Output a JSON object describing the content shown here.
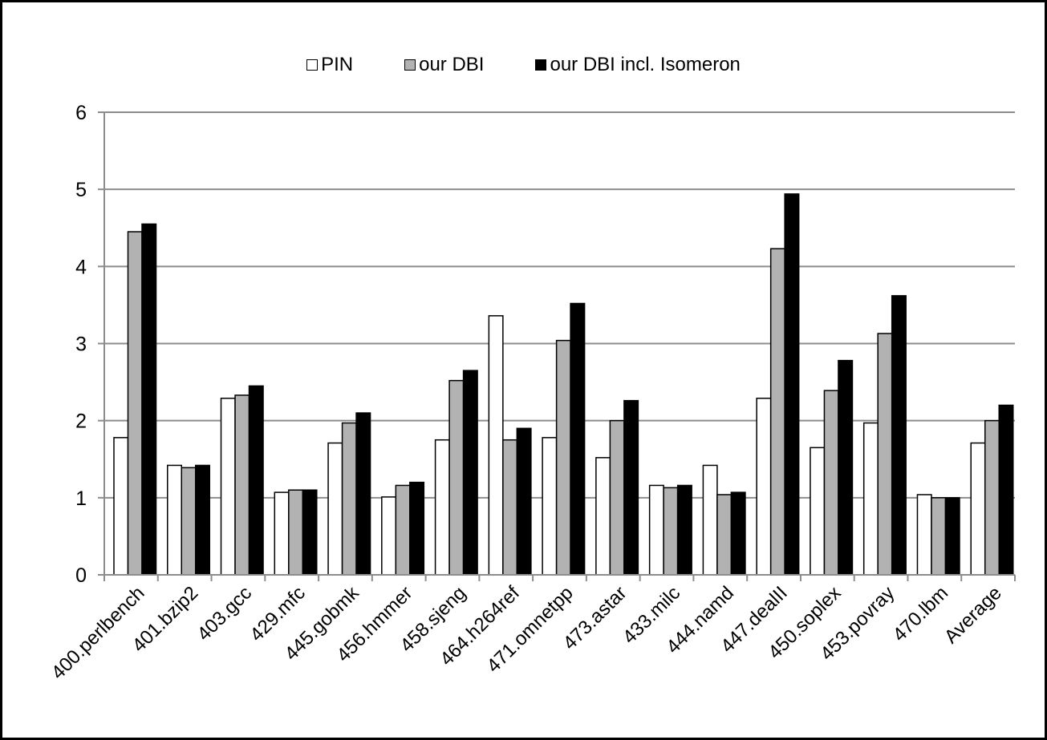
{
  "chart_data": {
    "type": "bar",
    "categories": [
      "400.perlbench",
      "401.bzip2",
      "403.gcc",
      "429.mfc",
      "445.gobmk",
      "456.hmmer",
      "458.sjeng",
      "464.h264ref",
      "471.omnetpp",
      "473.astar",
      "433.milc",
      "444.namd",
      "447.dealII",
      "450.soplex",
      "453.povray",
      "470.lbm",
      "Average"
    ],
    "series": [
      {
        "name": "PIN",
        "color": "#ffffff",
        "values": [
          1.78,
          1.42,
          2.29,
          1.07,
          1.71,
          1.01,
          1.75,
          3.36,
          1.78,
          1.52,
          1.16,
          1.42,
          2.29,
          1.65,
          1.97,
          1.04,
          1.71
        ]
      },
      {
        "name": "our DBI",
        "color": "#b2b2b2",
        "values": [
          4.45,
          1.39,
          2.33,
          1.1,
          1.97,
          1.16,
          2.52,
          1.75,
          3.04,
          2.0,
          1.13,
          1.04,
          4.23,
          2.39,
          3.13,
          1.0,
          2.0
        ]
      },
      {
        "name": "our DBI incl. Isomeron",
        "color": "#000000",
        "values": [
          4.55,
          1.42,
          2.45,
          1.1,
          2.1,
          1.2,
          2.65,
          1.9,
          3.52,
          2.26,
          1.16,
          1.07,
          4.94,
          2.78,
          3.62,
          1.0,
          2.2
        ]
      }
    ],
    "ylim": [
      0,
      6
    ],
    "yticks": [
      0,
      1,
      2,
      3,
      4,
      5,
      6
    ],
    "grid": true,
    "legend_position": "top",
    "title": "",
    "xlabel": "",
    "ylabel": ""
  }
}
